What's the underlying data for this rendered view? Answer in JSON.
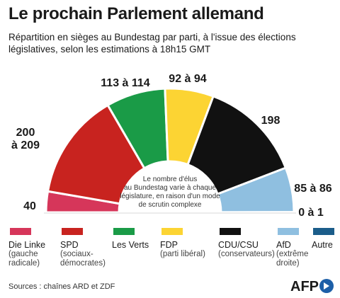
{
  "title": "Le prochain Parlement allemand",
  "subtitle": "Répartition en sièges au Bundestag par parti, à l'issue des élections législatives, selon les estimations à 18h15 GMT",
  "chart_data": {
    "type": "pie",
    "subtype": "hemicycle",
    "series": [
      {
        "name": "Die Linke",
        "label_lines": [
          "40"
        ],
        "value": 40,
        "color": "#d6365a"
      },
      {
        "name": "SPD",
        "label_lines": [
          "200",
          "à 209"
        ],
        "value": 204.5,
        "color": "#c8231f"
      },
      {
        "name": "Les Verts",
        "label_lines": [
          "113 à 114"
        ],
        "value": 113.5,
        "color": "#1a9b47"
      },
      {
        "name": "FDP",
        "label_lines": [
          "92 à 94"
        ],
        "value": 93,
        "color": "#fcd433"
      },
      {
        "name": "CDU/CSU",
        "label_lines": [
          "198"
        ],
        "value": 198,
        "color": "#111111"
      },
      {
        "name": "AfD",
        "label_lines": [
          "85 à 86"
        ],
        "value": 85.5,
        "color": "#8fbfe0"
      },
      {
        "name": "Autre",
        "label_lines": [
          "0 à 1"
        ],
        "value": 0.5,
        "color": "#1b5d8a"
      }
    ],
    "center_note": [
      "Le nombre d'élus",
      "au Bundestag varie à chaque",
      "législature, en raison d'un mode",
      "de scrutin complexe"
    ]
  },
  "legend": [
    {
      "name": "Die Linke",
      "desc": [
        "(gauche",
        "radicale)"
      ],
      "color": "#d6365a"
    },
    {
      "name": "SPD",
      "desc": [
        "(sociaux-",
        "démocrates)"
      ],
      "color": "#c8231f"
    },
    {
      "name": "Les Verts",
      "desc": [],
      "color": "#1a9b47"
    },
    {
      "name": "FDP",
      "desc": [
        "(parti libéral)"
      ],
      "color": "#fcd433"
    },
    {
      "name": "CDU/CSU",
      "desc": [
        "(conservateurs)"
      ],
      "color": "#111111"
    },
    {
      "name": "AfD",
      "desc": [
        "(extrême",
        "droite)"
      ],
      "color": "#8fbfe0"
    },
    {
      "name": "Autre",
      "desc": [],
      "color": "#1b5d8a"
    }
  ],
  "source": "Sources : chaînes ARD et ZDF",
  "logo_text": "AFP"
}
